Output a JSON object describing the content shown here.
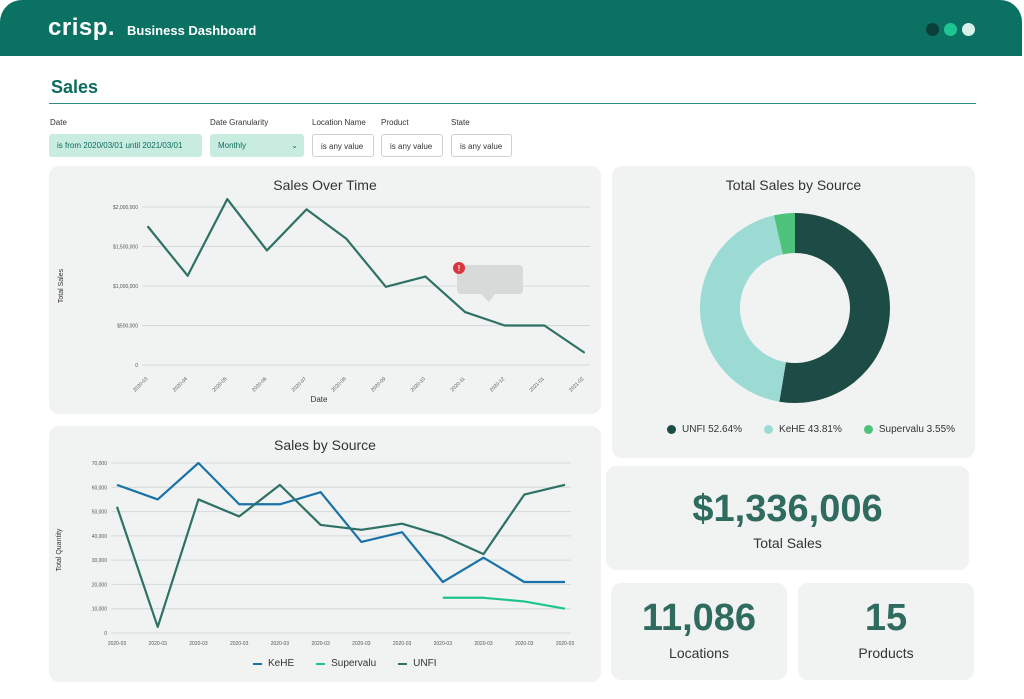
{
  "header": {
    "logo": "crisp.",
    "title": "Business Dashboard"
  },
  "page": {
    "title": "Sales"
  },
  "filters": [
    {
      "label": "Date",
      "value": "is from 2020/03/01 until 2021/03/01"
    },
    {
      "label": "Date Granularity",
      "value": "Monthly"
    },
    {
      "label": "Location Name",
      "value": "is any value"
    },
    {
      "label": "Product",
      "value": "is any value"
    },
    {
      "label": "State",
      "value": "is any value"
    }
  ],
  "colors": {
    "accent": "#0b7163",
    "line": "#2e7265",
    "kehe": "#1a73a8",
    "supervalu": "#1ec58a",
    "unfi": "#2e7265",
    "donut_unfi": "#1d4c46",
    "donut_kehe": "#9bdbd3",
    "donut_supervalu": "#4ec27a"
  },
  "chart_data": [
    {
      "type": "line",
      "title": "Sales Over Time",
      "xlabel": "Date",
      "ylabel": "Total Sales",
      "ytick_labels": [
        "0",
        "$500,000",
        "$1,000,000",
        "$1,500,000",
        "$2,000,000"
      ],
      "ylim": [
        0,
        2000000
      ],
      "categories": [
        "2020-03",
        "2020-04",
        "2020-05",
        "2020-06",
        "2020-07",
        "2020-08",
        "2020-09",
        "2020-10",
        "2020-11",
        "2020-12",
        "2021-01",
        "2021-02"
      ],
      "values": [
        1750000,
        1130000,
        2100000,
        1450000,
        1970000,
        1600000,
        990000,
        1120000,
        670000,
        500000,
        500000,
        160000
      ],
      "grid": true
    },
    {
      "type": "line",
      "title": "Sales by Source",
      "ylabel": "Total Quantity",
      "ytick_labels": [
        "0",
        "10,000",
        "20,000",
        "30,000",
        "40,000",
        "50,000",
        "60,000",
        "70,000"
      ],
      "ylim": [
        0,
        70000
      ],
      "categories": [
        "2020-03",
        "2020-03",
        "2020-03",
        "2020-03",
        "2020-03",
        "2020-03",
        "2020-03",
        "2020-03",
        "2020-03",
        "2020-03",
        "2020-03",
        "2020-03"
      ],
      "series": [
        {
          "name": "KeHE",
          "values": [
            61000,
            55000,
            70000,
            53000,
            53000,
            58000,
            37500,
            41500,
            21000,
            31000,
            21000,
            21000
          ]
        },
        {
          "name": "Supervalu",
          "values": [
            null,
            null,
            null,
            null,
            null,
            null,
            null,
            null,
            14500,
            14500,
            13000,
            10000
          ]
        },
        {
          "name": "UNFI",
          "values": [
            52000,
            2500,
            55000,
            48000,
            61000,
            44500,
            42500,
            45000,
            40000,
            32500,
            57000,
            61000
          ]
        }
      ],
      "legend": "bottom",
      "grid": true
    },
    {
      "type": "pie",
      "title": "Total Sales by Source",
      "slices": [
        {
          "name": "UNFI",
          "value": 52.64,
          "label": "UNFI 52.64%"
        },
        {
          "name": "KeHE",
          "value": 43.81,
          "label": "KeHE 43.81%"
        },
        {
          "name": "Supervalu",
          "value": 3.55,
          "label": "Supervalu 3.55%"
        }
      ],
      "legend": "bottom"
    }
  ],
  "kpis": {
    "total_sales": {
      "value": "$1,336,006",
      "label": "Total Sales"
    },
    "locations": {
      "value": "11,086",
      "label": "Locations"
    },
    "products": {
      "value": "15",
      "label": "Products"
    }
  }
}
